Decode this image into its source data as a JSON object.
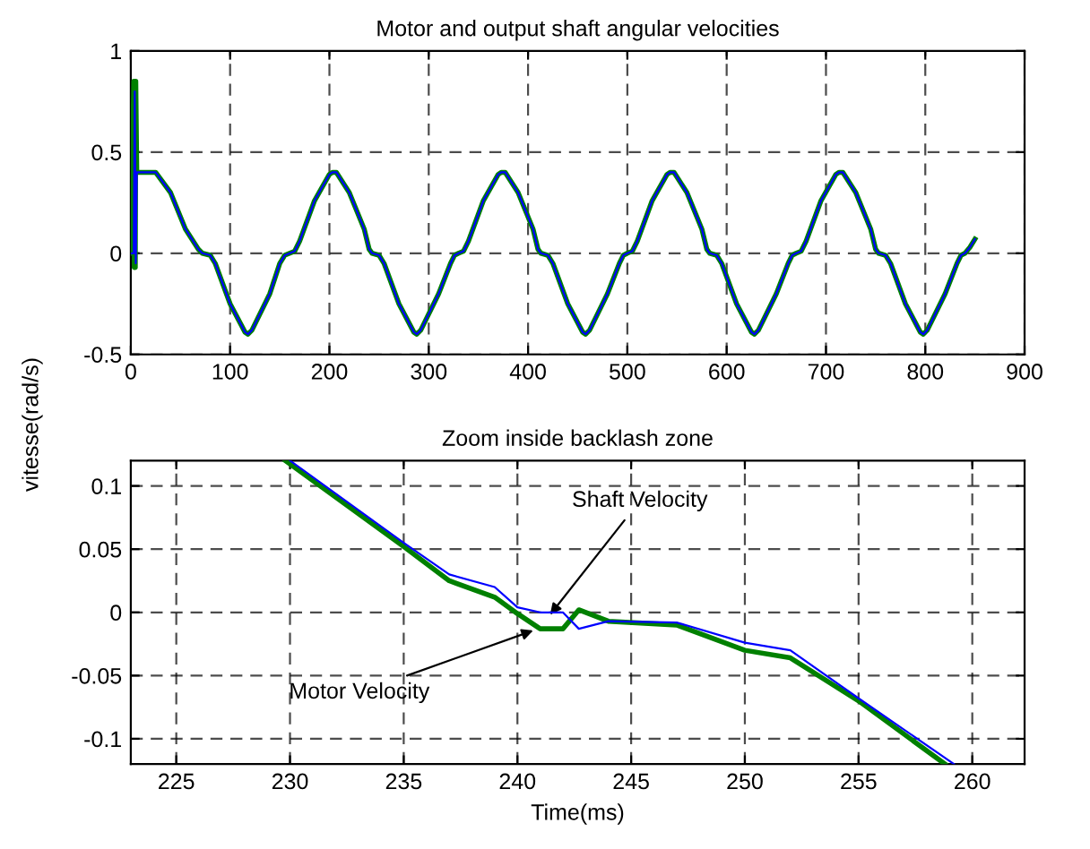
{
  "chart_data": [
    {
      "type": "line",
      "title": "Motor and output shaft angular velocities",
      "ylabel": "vitesse(rad/s)",
      "xlim": [
        0,
        900
      ],
      "ylim": [
        -0.5,
        1
      ],
      "xticks": [
        0,
        100,
        200,
        300,
        400,
        500,
        600,
        700,
        800,
        900
      ],
      "yticks": [
        -0.5,
        0,
        0.5,
        1
      ],
      "grid": true,
      "line_style": "solid",
      "series": [
        {
          "color": "#0000ff",
          "x": [
            0,
            3,
            4,
            5,
            6,
            8,
            25,
            40,
            55,
            68,
            72,
            80,
            85,
            100,
            115,
            118,
            122,
            140,
            150,
            155,
            160,
            165,
            170,
            185,
            200,
            203,
            207,
            220,
            235,
            240,
            243,
            250,
            255,
            270,
            285,
            288,
            292,
            310,
            322,
            326,
            330,
            335,
            340,
            355,
            370,
            373,
            377,
            390,
            405,
            410,
            413,
            420,
            425,
            440,
            455,
            458,
            462,
            480,
            492,
            496,
            500,
            505,
            510,
            525,
            540,
            543,
            547,
            560,
            575,
            580,
            583,
            590,
            595,
            610,
            625,
            628,
            632,
            650,
            662,
            666,
            670,
            675,
            680,
            695,
            710,
            713,
            717,
            730,
            745,
            750,
            753,
            760,
            765,
            780,
            795,
            798,
            802,
            820,
            832,
            836,
            840,
            845,
            850
          ],
          "values": [
            0,
            0,
            0.8,
            -0.05,
            0.4,
            0.4,
            0.4,
            0.3,
            0.12,
            0.02,
            0,
            -0.01,
            -0.05,
            -0.25,
            -0.39,
            -0.4,
            -0.38,
            -0.2,
            -0.05,
            -0.01,
            0,
            0.01,
            0.06,
            0.26,
            0.39,
            0.4,
            0.4,
            0.3,
            0.12,
            0.02,
            0,
            -0.01,
            -0.05,
            -0.25,
            -0.39,
            -0.4,
            -0.38,
            -0.2,
            -0.05,
            -0.01,
            0,
            0.01,
            0.06,
            0.26,
            0.39,
            0.4,
            0.4,
            0.3,
            0.12,
            0.02,
            0,
            -0.01,
            -0.05,
            -0.25,
            -0.39,
            -0.4,
            -0.38,
            -0.2,
            -0.05,
            -0.01,
            0,
            0.01,
            0.06,
            0.26,
            0.39,
            0.4,
            0.4,
            0.3,
            0.12,
            0.02,
            0,
            -0.01,
            -0.05,
            -0.25,
            -0.39,
            -0.4,
            -0.38,
            -0.2,
            -0.05,
            -0.01,
            0,
            0.01,
            0.06,
            0.26,
            0.39,
            0.4,
            0.4,
            0.3,
            0.12,
            0.02,
            0,
            -0.01,
            -0.05,
            -0.25,
            -0.39,
            -0.4,
            -0.38,
            -0.2,
            -0.05,
            -0.01,
            0,
            0.03,
            0.07
          ]
        },
        {
          "color": "#008000",
          "x": [
            0,
            3,
            3.5,
            4,
            4.5,
            5,
            6,
            8,
            25,
            40,
            55,
            68,
            72,
            80,
            85,
            100,
            115,
            118,
            122,
            140,
            150,
            155,
            160,
            165,
            170,
            185,
            200,
            203,
            207,
            220,
            235,
            240,
            243,
            250,
            255,
            270,
            285,
            288,
            292,
            310,
            322,
            326,
            330,
            335,
            340,
            355,
            370,
            373,
            377,
            390,
            405,
            410,
            413,
            420,
            425,
            440,
            455,
            458,
            462,
            480,
            492,
            496,
            500,
            505,
            510,
            525,
            540,
            543,
            547,
            560,
            575,
            580,
            583,
            590,
            595,
            610,
            625,
            628,
            632,
            650,
            662,
            666,
            670,
            675,
            680,
            695,
            710,
            713,
            717,
            730,
            745,
            750,
            753,
            760,
            765,
            780,
            795,
            798,
            802,
            820,
            832,
            836,
            840,
            845,
            850
          ],
          "values": [
            0,
            0.85,
            -0.07,
            0.85,
            -0.07,
            0.85,
            0.4,
            0.4,
            0.4,
            0.3,
            0.12,
            0.02,
            0,
            -0.01,
            -0.05,
            -0.25,
            -0.39,
            -0.4,
            -0.38,
            -0.2,
            -0.05,
            -0.01,
            0,
            0.01,
            0.06,
            0.26,
            0.39,
            0.4,
            0.4,
            0.3,
            0.12,
            0.02,
            0,
            -0.01,
            -0.05,
            -0.25,
            -0.39,
            -0.4,
            -0.38,
            -0.2,
            -0.05,
            -0.01,
            0,
            0.01,
            0.06,
            0.26,
            0.39,
            0.4,
            0.4,
            0.3,
            0.12,
            0.02,
            0,
            -0.01,
            -0.05,
            -0.25,
            -0.39,
            -0.4,
            -0.38,
            -0.2,
            -0.05,
            -0.01,
            0,
            0.01,
            0.06,
            0.26,
            0.39,
            0.4,
            0.4,
            0.3,
            0.12,
            0.02,
            0,
            -0.01,
            -0.05,
            -0.25,
            -0.39,
            -0.4,
            -0.38,
            -0.2,
            -0.05,
            -0.01,
            0,
            0.01,
            0.06,
            0.26,
            0.39,
            0.4,
            0.4,
            0.3,
            0.12,
            0.02,
            0,
            -0.01,
            -0.05,
            -0.25,
            -0.39,
            -0.4,
            -0.38,
            -0.2,
            -0.05,
            -0.01,
            0,
            0.03,
            0.07
          ]
        }
      ]
    },
    {
      "type": "line",
      "title": "Zoom inside backlash zone",
      "xlabel": "Time(ms)",
      "xlim": [
        223,
        262.3
      ],
      "ylim": [
        -0.12,
        0.12
      ],
      "xticks": [
        225,
        230,
        235,
        240,
        245,
        250,
        255,
        260
      ],
      "yticks": [
        -0.1,
        -0.05,
        0,
        0.05,
        0.1
      ],
      "grid": true,
      "line_style": "solid",
      "series": [
        {
          "color": "#0000ff",
          "x": [
            230,
            235,
            237,
            239,
            240,
            241,
            242,
            242.7,
            244,
            247,
            250,
            252,
            255,
            259.2
          ],
          "values": [
            0.12,
            0.055,
            0.03,
            0.02,
            0.004,
            0.0,
            0.0,
            -0.013,
            -0.007,
            -0.008,
            -0.024,
            -0.03,
            -0.068,
            -0.12
          ]
        },
        {
          "color": "#008000",
          "x": [
            229.8,
            235,
            237,
            239,
            240,
            241,
            242,
            242.7,
            244,
            247,
            250,
            252,
            255,
            258.8
          ],
          "values": [
            0.12,
            0.052,
            0.025,
            0.012,
            -0.001,
            -0.013,
            -0.013,
            0.002,
            -0.007,
            -0.01,
            -0.03,
            -0.036,
            -0.07,
            -0.12
          ]
        }
      ],
      "annotations": [
        {
          "text": "Shaft Velocity",
          "x": 241.3,
          "y": -0.005
        },
        {
          "text": "Motor Velocity",
          "x": 240.9,
          "y": -0.013
        }
      ]
    }
  ]
}
